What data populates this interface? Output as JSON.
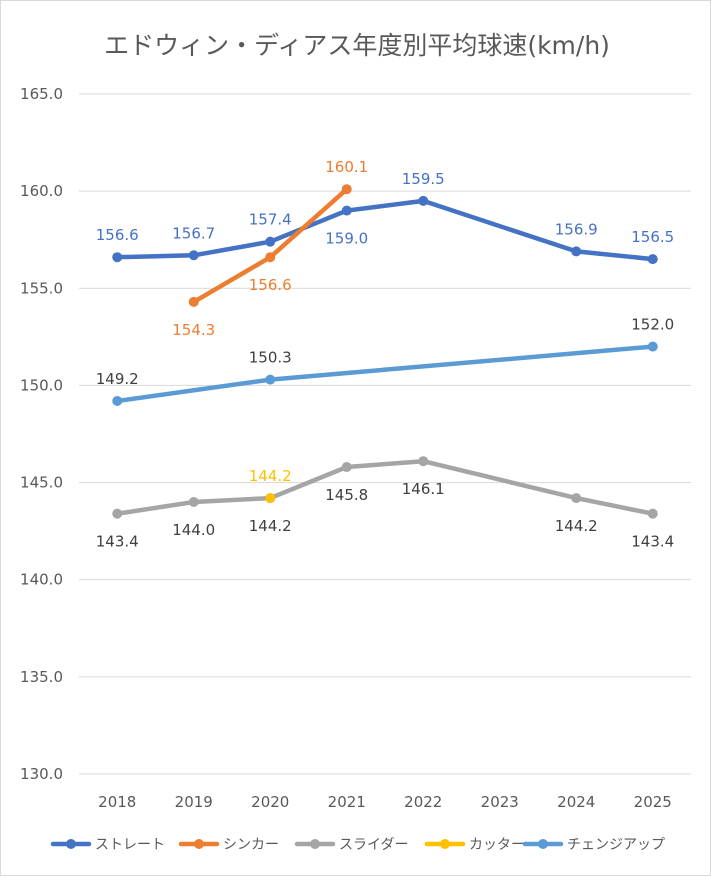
{
  "chart_data": {
    "type": "line",
    "title": "エドウィン・ディアス年度別平均球速(km/h)",
    "xlabel": "",
    "ylabel": "",
    "ylim": [
      130.0,
      165.0
    ],
    "y_ticks": [
      "130.0",
      "135.0",
      "140.0",
      "145.0",
      "150.0",
      "155.0",
      "160.0",
      "165.0"
    ],
    "categories": [
      "2018",
      "2019",
      "2020",
      "2021",
      "2022",
      "2023",
      "2024",
      "2025"
    ],
    "grid": true,
    "legend_position": "bottom",
    "series": [
      {
        "name": "ストレート",
        "color": "#4472C4",
        "values": [
          156.6,
          156.7,
          157.4,
          159.0,
          159.5,
          null,
          156.9,
          156.5
        ],
        "labels": [
          "156.6",
          "156.7",
          "157.4",
          "159.0",
          "159.5",
          null,
          "156.9",
          "156.5"
        ],
        "label_pos": [
          "above",
          "above",
          "above",
          "below",
          "above",
          null,
          "above",
          "above"
        ]
      },
      {
        "name": "シンカー",
        "color": "#ED7D31",
        "values": [
          null,
          154.3,
          156.6,
          160.1,
          null,
          null,
          null,
          null
        ],
        "labels": [
          null,
          "154.3",
          "156.6",
          "160.1",
          null,
          null,
          null,
          null
        ],
        "label_pos": [
          null,
          "below",
          "below",
          "above",
          null,
          null,
          null,
          null
        ]
      },
      {
        "name": "スライダー",
        "color": "#A5A5A5",
        "values": [
          143.4,
          144.0,
          144.2,
          145.8,
          146.1,
          null,
          144.2,
          143.4
        ],
        "labels": [
          "143.4",
          "144.0",
          "144.2",
          "145.8",
          "146.1",
          null,
          "144.2",
          "143.4"
        ],
        "label_pos": [
          "below",
          "below",
          "below",
          "below",
          "below",
          null,
          "below",
          "below"
        ]
      },
      {
        "name": "カッター",
        "color": "#FFC000",
        "values": [
          null,
          null,
          144.2,
          null,
          null,
          null,
          null,
          null
        ],
        "labels": [
          null,
          null,
          "144.2",
          null,
          null,
          null,
          null,
          null
        ],
        "label_pos": [
          null,
          null,
          "above",
          null,
          null,
          null,
          null,
          null
        ]
      },
      {
        "name": "チェンジアップ",
        "color": "#5B9BD5",
        "values": [
          149.2,
          null,
          150.3,
          null,
          null,
          null,
          null,
          152.0
        ],
        "labels": [
          "149.2",
          null,
          "150.3",
          null,
          null,
          null,
          null,
          "152.0"
        ],
        "label_pos": [
          "above",
          null,
          "above",
          null,
          null,
          null,
          null,
          "above"
        ]
      }
    ]
  }
}
